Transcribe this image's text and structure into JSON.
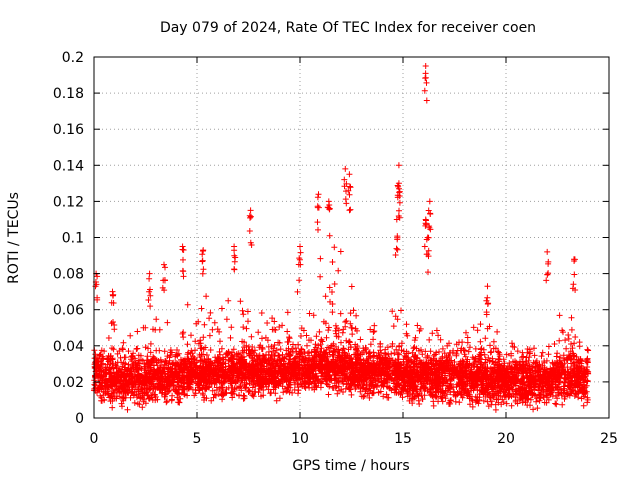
{
  "chart_data": {
    "type": "scatter",
    "title": "Day 079 of 2024, Rate Of TEC Index for receiver coen",
    "xlabel": "GPS time / hours",
    "ylabel": "ROTI / TECUs",
    "xlim": [
      0,
      25
    ],
    "ylim": [
      0,
      0.2
    ],
    "xticks": [
      "0",
      "5",
      "10",
      "15",
      "20",
      "25"
    ],
    "yticks": [
      "0",
      "0.02",
      "0.04",
      "0.06",
      "0.08",
      "0.1",
      "0.12",
      "0.14",
      "0.16",
      "0.18",
      "0.2"
    ],
    "grid": true,
    "marker": "+",
    "color": "#ff0000",
    "notable_points": [
      {
        "x": 0.1,
        "y": 0.08
      },
      {
        "x": 0.9,
        "y": 0.07
      },
      {
        "x": 2.7,
        "y": 0.08
      },
      {
        "x": 3.4,
        "y": 0.085
      },
      {
        "x": 4.3,
        "y": 0.095
      },
      {
        "x": 5.3,
        "y": 0.093
      },
      {
        "x": 6.8,
        "y": 0.095
      },
      {
        "x": 7.6,
        "y": 0.115
      },
      {
        "x": 10.0,
        "y": 0.095
      },
      {
        "x": 10.9,
        "y": 0.124
      },
      {
        "x": 11.4,
        "y": 0.12
      },
      {
        "x": 12.2,
        "y": 0.138
      },
      {
        "x": 12.4,
        "y": 0.135
      },
      {
        "x": 14.8,
        "y": 0.14
      },
      {
        "x": 14.8,
        "y": 0.13
      },
      {
        "x": 14.7,
        "y": 0.11
      },
      {
        "x": 16.1,
        "y": 0.195
      },
      {
        "x": 16.3,
        "y": 0.12
      },
      {
        "x": 16.2,
        "y": 0.1
      },
      {
        "x": 16.1,
        "y": 0.11
      },
      {
        "x": 19.1,
        "y": 0.073
      },
      {
        "x": 22.0,
        "y": 0.092
      },
      {
        "x": 23.3,
        "y": 0.088
      }
    ],
    "density_profile": [
      {
        "x": 0,
        "base": 0.022,
        "peak": 0.045
      },
      {
        "x": 1,
        "base": 0.02,
        "peak": 0.055
      },
      {
        "x": 2,
        "base": 0.02,
        "peak": 0.05
      },
      {
        "x": 3,
        "base": 0.022,
        "peak": 0.06
      },
      {
        "x": 4,
        "base": 0.022,
        "peak": 0.055
      },
      {
        "x": 5,
        "base": 0.024,
        "peak": 0.07
      },
      {
        "x": 6,
        "base": 0.024,
        "peak": 0.06
      },
      {
        "x": 7,
        "base": 0.025,
        "peak": 0.07
      },
      {
        "x": 8,
        "base": 0.025,
        "peak": 0.065
      },
      {
        "x": 9,
        "base": 0.025,
        "peak": 0.06
      },
      {
        "x": 10,
        "base": 0.026,
        "peak": 0.08
      },
      {
        "x": 11,
        "base": 0.028,
        "peak": 0.095
      },
      {
        "x": 12,
        "base": 0.027,
        "peak": 0.1
      },
      {
        "x": 13,
        "base": 0.025,
        "peak": 0.06
      },
      {
        "x": 14,
        "base": 0.024,
        "peak": 0.055
      },
      {
        "x": 15,
        "base": 0.023,
        "peak": 0.07
      },
      {
        "x": 16,
        "base": 0.022,
        "peak": 0.05
      },
      {
        "x": 17,
        "base": 0.022,
        "peak": 0.055
      },
      {
        "x": 18,
        "base": 0.022,
        "peak": 0.05
      },
      {
        "x": 19,
        "base": 0.021,
        "peak": 0.055
      },
      {
        "x": 20,
        "base": 0.02,
        "peak": 0.045
      },
      {
        "x": 21,
        "base": 0.019,
        "peak": 0.04
      },
      {
        "x": 22,
        "base": 0.02,
        "peak": 0.045
      },
      {
        "x": 23,
        "base": 0.022,
        "peak": 0.06
      },
      {
        "x": 24,
        "base": 0.021,
        "peak": 0.045
      }
    ],
    "x_max_data": 24
  }
}
